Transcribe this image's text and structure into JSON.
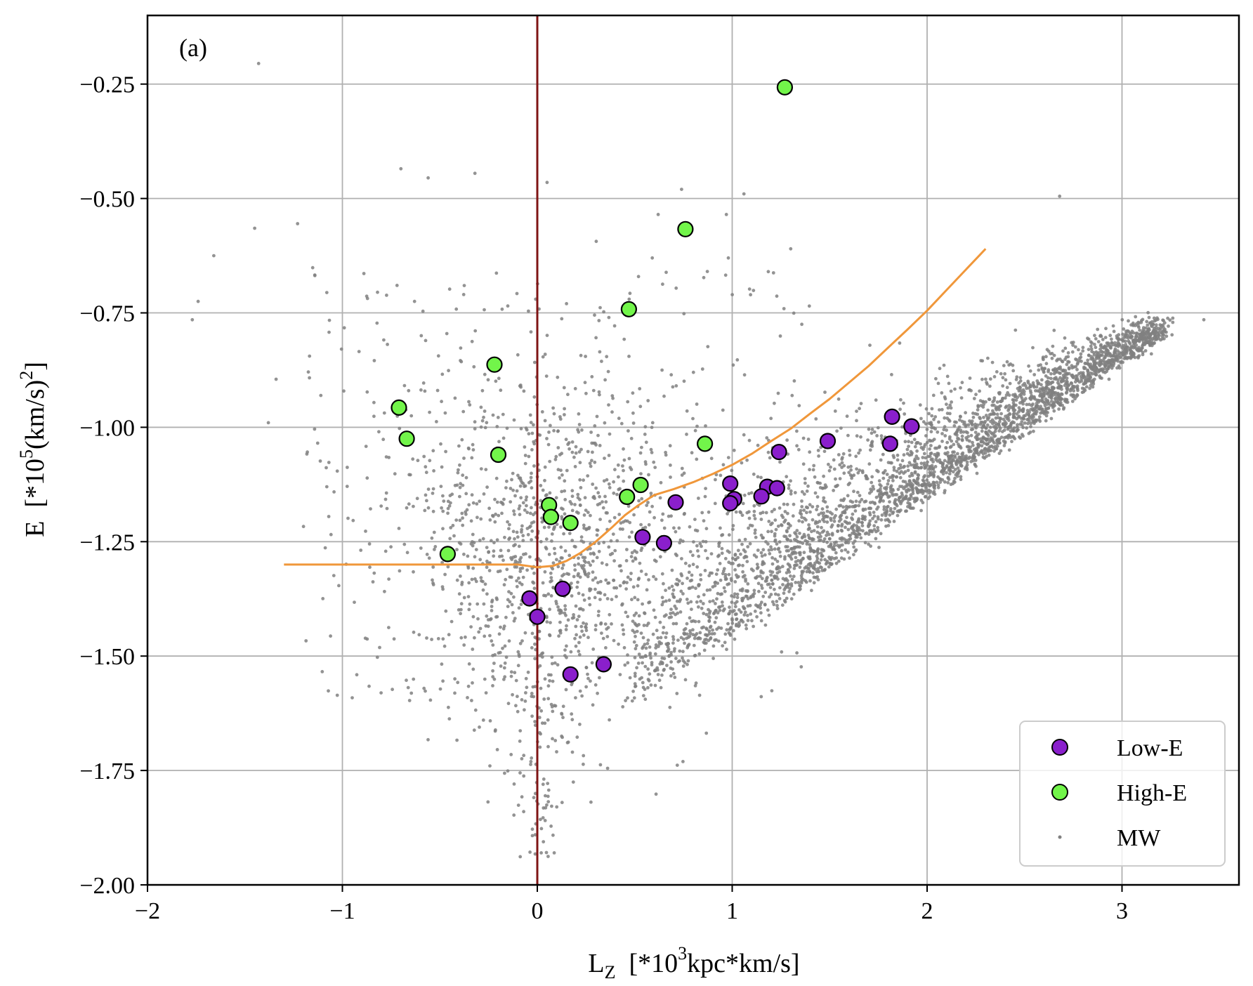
{
  "chart_data": {
    "type": "scatter",
    "panel_label": "(a)",
    "xlabel": {
      "main": "L",
      "sub": "Z",
      "rest_pre": "  [*10",
      "sup": "3",
      "rest_post": "kpc*km/s]"
    },
    "ylabel": {
      "main": "E  [*10",
      "sup": "5",
      "rest_mid": "(km/s)",
      "sup2": "2",
      "rest_post": "]"
    },
    "xlim": [
      -2.0,
      3.6
    ],
    "ylim": [
      -2.0,
      -0.1
    ],
    "xticks": [
      -2,
      -1,
      0,
      1,
      2,
      3
    ],
    "xtick_labels": [
      "−2",
      "−1",
      "0",
      "1",
      "2",
      "3"
    ],
    "yticks": [
      -2.0,
      -1.75,
      -1.5,
      -1.25,
      -1.0,
      -0.75,
      -0.5,
      -0.25
    ],
    "ytick_labels": [
      "−2.00",
      "−1.75",
      "−1.50",
      "−1.25",
      "−1.00",
      "−0.75",
      "−0.50",
      "−0.25"
    ],
    "grid": true,
    "legend_position": "bottom-right",
    "vertical_line": {
      "x": 0,
      "color": "#7f1414"
    },
    "colors": {
      "low_e": "#8a1fcc",
      "high_e": "#72f54a",
      "mw": "#808080",
      "curve": "#f0973a",
      "grid": "#b0b0b0"
    },
    "series": [
      {
        "name": "Low-E",
        "marker": "circle-large",
        "points": [
          [
            1.82,
            -0.977
          ],
          [
            1.92,
            -0.998
          ],
          [
            1.81,
            -1.036
          ],
          [
            1.49,
            -1.03
          ],
          [
            1.24,
            -1.054
          ],
          [
            0.99,
            -1.123
          ],
          [
            1.18,
            -1.13
          ],
          [
            1.23,
            -1.133
          ],
          [
            1.01,
            -1.157
          ],
          [
            0.99,
            -1.166
          ],
          [
            1.15,
            -1.151
          ],
          [
            0.71,
            -1.164
          ],
          [
            0.54,
            -1.24
          ],
          [
            0.65,
            -1.253
          ],
          [
            0.13,
            -1.353
          ],
          [
            -0.04,
            -1.374
          ],
          [
            0.0,
            -1.414
          ],
          [
            0.34,
            -1.518
          ],
          [
            0.17,
            -1.54
          ]
        ]
      },
      {
        "name": "High-E",
        "marker": "circle-large",
        "points": [
          [
            1.27,
            -0.257
          ],
          [
            0.76,
            -0.567
          ],
          [
            0.47,
            -0.742
          ],
          [
            -0.22,
            -0.863
          ],
          [
            -0.71,
            -0.957
          ],
          [
            -0.67,
            -1.025
          ],
          [
            -0.2,
            -1.06
          ],
          [
            0.86,
            -1.036
          ],
          [
            0.53,
            -1.126
          ],
          [
            0.46,
            -1.152
          ],
          [
            0.06,
            -1.17
          ],
          [
            0.07,
            -1.196
          ],
          [
            0.17,
            -1.209
          ],
          [
            -0.46,
            -1.277
          ]
        ]
      },
      {
        "name": "MW",
        "marker": "dot-small",
        "description": "thousands of background stars; dense band rising from (0.3,-1.55) to (3.2,-0.78), diffuse halo around Lz=0",
        "outliers": [
          [
            -1.43,
            -0.205
          ],
          [
            -0.7,
            -0.435
          ],
          [
            -0.56,
            -0.455
          ],
          [
            -0.32,
            -0.445
          ],
          [
            0.05,
            -0.465
          ],
          [
            0.74,
            -0.48
          ],
          [
            1.06,
            -0.49
          ],
          [
            -1.45,
            -0.565
          ],
          [
            -1.23,
            -0.555
          ],
          [
            -1.66,
            -0.625
          ],
          [
            0.62,
            -0.535
          ],
          [
            0.97,
            -0.535
          ],
          [
            1.3,
            -0.61
          ],
          [
            0.59,
            -0.63
          ],
          [
            0.98,
            -0.63
          ],
          [
            -0.82,
            -0.705
          ],
          [
            -0.63,
            -0.725
          ],
          [
            -1.74,
            -0.725
          ],
          [
            -1.77,
            -0.765
          ],
          [
            -1.34,
            -0.895
          ],
          [
            -1.38,
            -0.99
          ],
          [
            -1.08,
            -1.13
          ],
          [
            -1.07,
            -1.195
          ],
          [
            2.68,
            -0.495
          ],
          [
            3.42,
            -0.765
          ],
          [
            3.16,
            -0.775
          ],
          [
            2.98,
            -0.805
          ],
          [
            -0.07,
            -1.84
          ],
          [
            0.02,
            -1.93
          ],
          [
            0.18,
            -1.71
          ]
        ]
      }
    ],
    "curve": {
      "name": "boundary",
      "points": [
        [
          -1.3,
          -1.3
        ],
        [
          -0.6,
          -1.3
        ],
        [
          -0.1,
          -1.3
        ],
        [
          -0.05,
          -1.303
        ],
        [
          0.0,
          -1.306
        ],
        [
          0.08,
          -1.303
        ],
        [
          0.15,
          -1.292
        ],
        [
          0.22,
          -1.275
        ],
        [
          0.3,
          -1.25
        ],
        [
          0.38,
          -1.22
        ],
        [
          0.45,
          -1.192
        ],
        [
          0.52,
          -1.17
        ],
        [
          0.6,
          -1.148
        ],
        [
          0.7,
          -1.135
        ],
        [
          0.8,
          -1.12
        ],
        [
          0.9,
          -1.102
        ],
        [
          1.0,
          -1.082
        ],
        [
          1.1,
          -1.058
        ],
        [
          1.2,
          -1.03
        ],
        [
          1.3,
          -1.003
        ],
        [
          1.4,
          -0.97
        ],
        [
          1.5,
          -0.938
        ],
        [
          1.6,
          -0.902
        ],
        [
          1.7,
          -0.866
        ],
        [
          1.8,
          -0.826
        ],
        [
          1.9,
          -0.786
        ],
        [
          2.0,
          -0.745
        ],
        [
          2.1,
          -0.7
        ],
        [
          2.2,
          -0.655
        ],
        [
          2.3,
          -0.61
        ]
      ]
    },
    "legend": [
      {
        "label": "Low-E",
        "series": "Low-E"
      },
      {
        "label": "High-E",
        "series": "High-E"
      },
      {
        "label": "MW",
        "series": "MW"
      }
    ]
  }
}
